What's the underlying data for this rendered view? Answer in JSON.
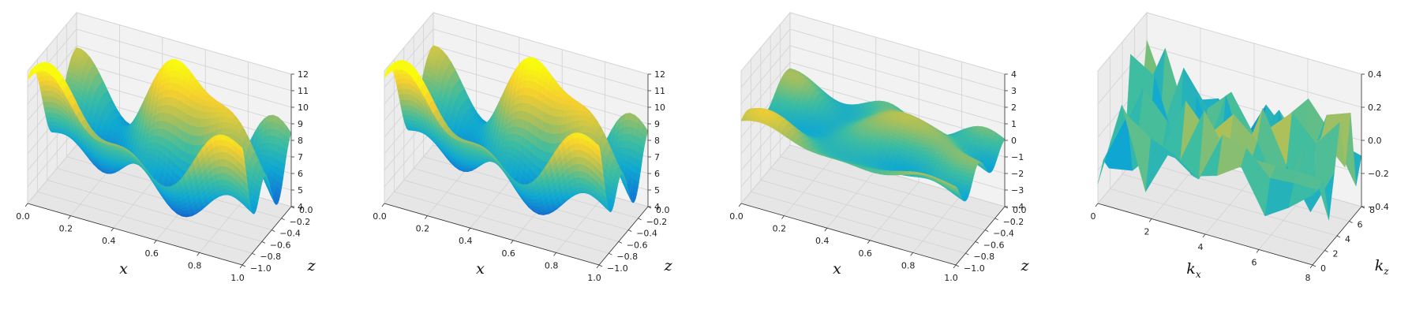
{
  "chart_data": [
    {
      "type": "surface3d",
      "xlabel": "x",
      "ylabel": "z",
      "zlabel": "",
      "xlim": [
        0,
        1
      ],
      "ylim": [
        -1,
        0
      ],
      "zlim": [
        4,
        12
      ],
      "xticks": [
        "0.0",
        "0.2",
        "0.4",
        "0.6",
        "0.8",
        "1.0"
      ],
      "yticks": [
        "−1.0",
        "−0.8",
        "−0.6",
        "−0.4",
        "−0.2",
        "0.0"
      ],
      "zticks": [
        "4",
        "5",
        "6",
        "7",
        "8",
        "9",
        "10",
        "11",
        "12"
      ],
      "grid": true,
      "surface": {
        "function": "sum of sinusoids",
        "base": 8,
        "amplitude": 4,
        "resolution": 48
      }
    },
    {
      "type": "surface3d",
      "xlabel": "x",
      "ylabel": "z",
      "zlabel": "",
      "xlim": [
        0,
        1
      ],
      "ylim": [
        -1,
        0
      ],
      "zlim": [
        4,
        12
      ],
      "xticks": [
        "0.0",
        "0.2",
        "0.4",
        "0.6",
        "0.8",
        "1.0"
      ],
      "yticks": [
        "−1.0",
        "−0.8",
        "−0.6",
        "−0.4",
        "−0.2",
        "0.0"
      ],
      "zticks": [
        "4",
        "5",
        "6",
        "7",
        "8",
        "9",
        "10",
        "11",
        "12"
      ],
      "grid": true,
      "surface": {
        "function": "sum of sinusoids",
        "base": 8,
        "amplitude": 4,
        "resolution": 48
      }
    },
    {
      "type": "surface3d",
      "xlabel": "x",
      "ylabel": "z",
      "zlabel": "",
      "xlim": [
        0,
        1
      ],
      "ylim": [
        -1,
        0
      ],
      "zlim": [
        -4,
        4
      ],
      "xticks": [
        "0.0",
        "0.2",
        "0.4",
        "0.6",
        "0.8",
        "1.0"
      ],
      "yticks": [
        "−1.0",
        "−0.8",
        "−0.6",
        "−0.4",
        "−0.2",
        "0.0"
      ],
      "zticks": [
        "−4",
        "−3",
        "−2",
        "−1",
        "0",
        "1",
        "2",
        "3",
        "4"
      ],
      "grid": true,
      "surface": {
        "function": "difference of panels 1 and 2",
        "base": 0,
        "amplitude": 0.9,
        "resolution": 48
      }
    },
    {
      "type": "surface3d",
      "xlabel": "k",
      "xlabel_sub": "x",
      "ylabel": "k",
      "ylabel_sub": "z",
      "zlabel": "",
      "xlim": [
        0,
        9
      ],
      "ylim": [
        0,
        9
      ],
      "zlim": [
        -0.5,
        0.5
      ],
      "xticks": [
        "0",
        "2",
        "4",
        "6",
        "8"
      ],
      "yticks": [
        "0",
        "2",
        "4",
        "6",
        "8"
      ],
      "zticks": [
        "−0.4",
        "−0.2",
        "0.0",
        "0.2",
        "0.4"
      ],
      "grid": true,
      "surface": {
        "function": "coarse spectrum",
        "base": 0,
        "amplitude": 0.35,
        "resolution": 9
      }
    }
  ],
  "colormap": [
    "#352a87",
    "#1475d3",
    "#0fa8d2",
    "#3ebda0",
    "#a8bf5c",
    "#f5cf30",
    "#f9fb0e"
  ]
}
